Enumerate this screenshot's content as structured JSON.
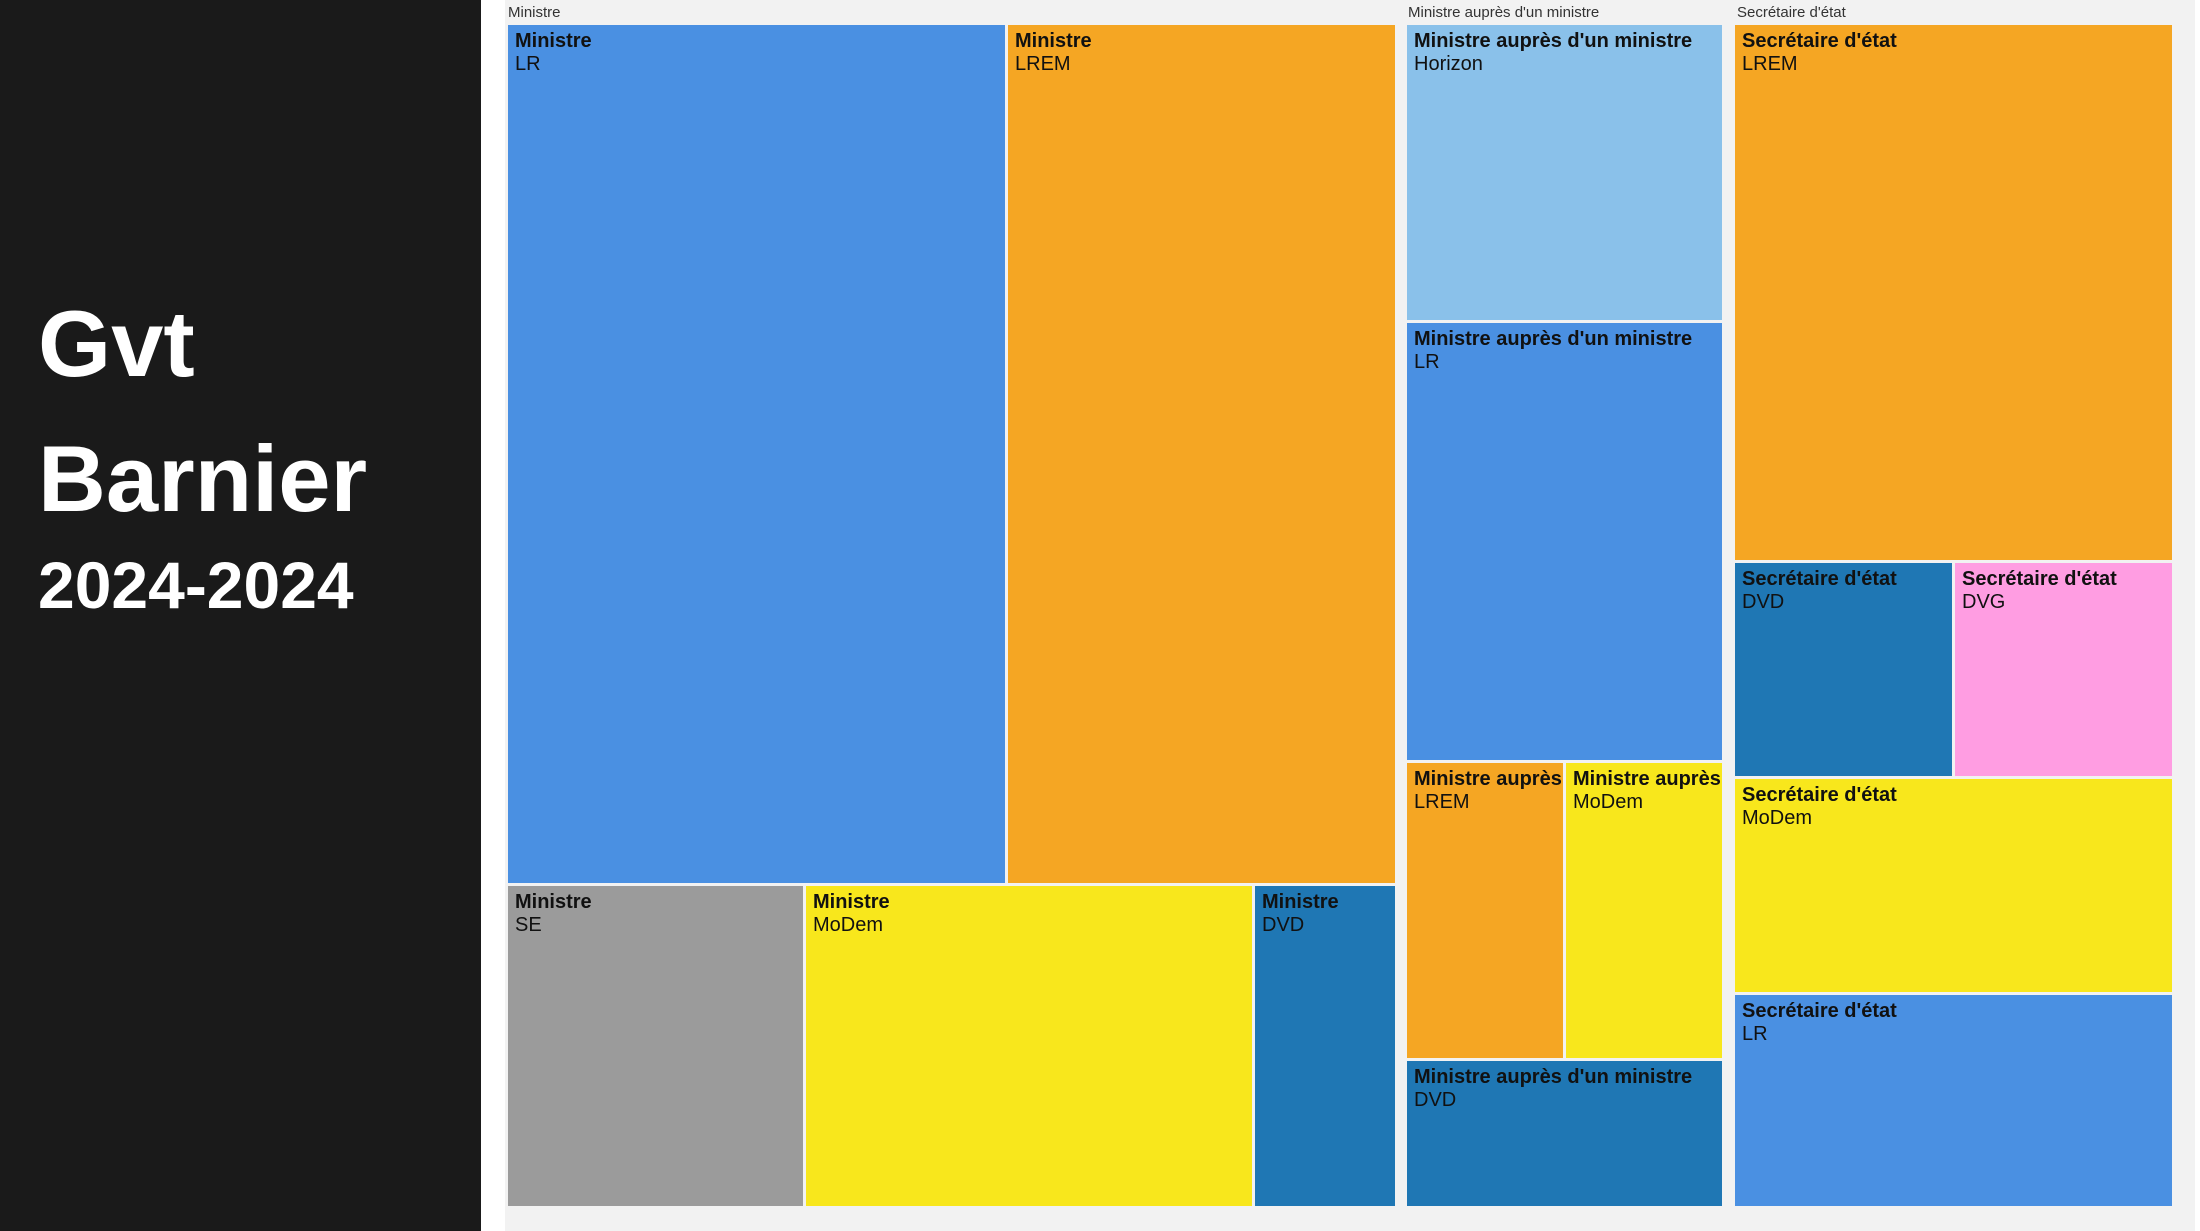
{
  "title": {
    "line1": "Gvt",
    "line2": "Barnier",
    "line3": "2024-2024"
  },
  "chart_data": {
    "type": "treemap",
    "groups": [
      {
        "name": "Ministre",
        "tiles": [
          {
            "role": "Ministre",
            "party": "LR",
            "color": "#4a90e2"
          },
          {
            "role": "Ministre",
            "party": "LREM",
            "color": "#f5a623"
          },
          {
            "role": "Ministre",
            "party": "SE",
            "color": "#9b9b9b"
          },
          {
            "role": "Ministre",
            "party": "MoDem",
            "color": "#f8e71c"
          },
          {
            "role": "Ministre",
            "party": "DVD",
            "color": "#1f77b4"
          }
        ]
      },
      {
        "name": "Ministre auprès d'un ministre",
        "tiles": [
          {
            "role": "Ministre auprès d'un ministre",
            "party": "Horizon",
            "color": "#8ac1ea"
          },
          {
            "role": "Ministre auprès d'un ministre",
            "party": "LR",
            "color": "#4a90e2"
          },
          {
            "role": "Ministre auprès d'un ministre",
            "party": "LREM",
            "color": "#f5a623"
          },
          {
            "role": "Ministre auprès d'un ministre",
            "party": "MoDem",
            "color": "#f8e71c"
          },
          {
            "role": "Ministre auprès d'un ministre",
            "party": "DVD",
            "color": "#1f77b4"
          }
        ]
      },
      {
        "name": "Secrétaire d'état",
        "tiles": [
          {
            "role": "Secrétaire d'état",
            "party": "LREM",
            "color": "#f5a623"
          },
          {
            "role": "Secrétaire d'état",
            "party": "DVD",
            "color": "#1f77b4"
          },
          {
            "role": "Secrétaire d'état",
            "party": "DVG",
            "color": "#ff9de2"
          },
          {
            "role": "Secrétaire d'état",
            "party": "MoDem",
            "color": "#f8e71c"
          },
          {
            "role": "Secrétaire d'état",
            "party": "LR",
            "color": "#4a90e2"
          }
        ]
      }
    ]
  }
}
